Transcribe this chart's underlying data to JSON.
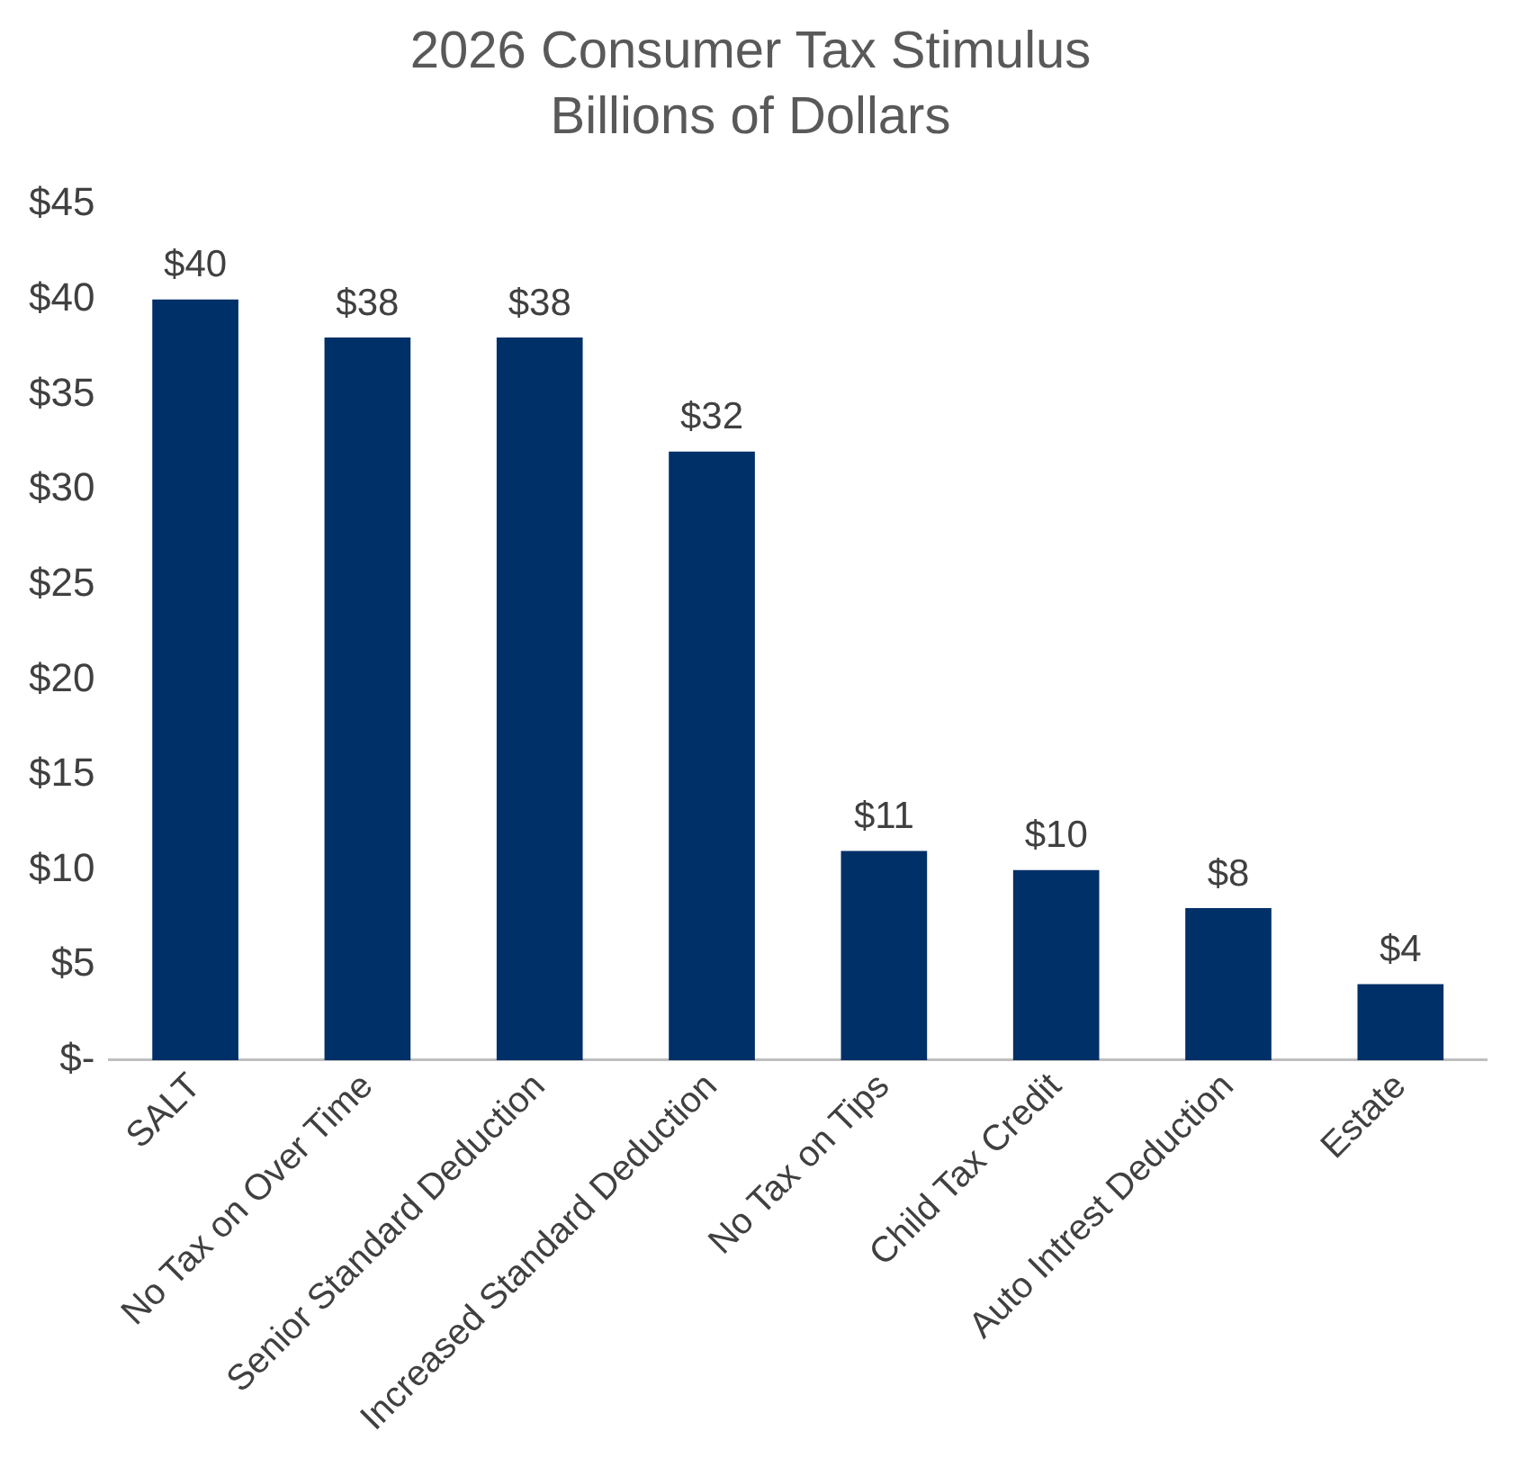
{
  "chart_data": {
    "type": "bar",
    "title": "2026 Consumer Tax Stimulus",
    "subtitle": "Billions of Dollars",
    "categories": [
      "SALT",
      "No Tax on Over Time",
      "Senior Standard Deduction",
      "Increased Standard Deduction",
      "No Tax on Tips",
      "Child Tax Credit",
      "Auto Intrest Deduction",
      "Estate"
    ],
    "values": [
      40,
      38,
      38,
      32,
      11,
      10,
      8,
      4
    ],
    "value_labels": [
      "$40",
      "$38",
      "$38",
      "$32",
      "$11",
      "$10",
      "$8",
      "$4"
    ],
    "color": "#003068",
    "ylim": [
      0,
      45
    ],
    "yticks": [
      {
        "value": 0,
        "label": "$-"
      },
      {
        "value": 5,
        "label": "$5"
      },
      {
        "value": 10,
        "label": "$10"
      },
      {
        "value": 15,
        "label": "$15"
      },
      {
        "value": 20,
        "label": "$20"
      },
      {
        "value": 25,
        "label": "$25"
      },
      {
        "value": 30,
        "label": "$30"
      },
      {
        "value": 35,
        "label": "$35"
      },
      {
        "value": 40,
        "label": "$40"
      },
      {
        "value": 45,
        "label": "$45"
      }
    ],
    "grid": false,
    "legend": false
  }
}
